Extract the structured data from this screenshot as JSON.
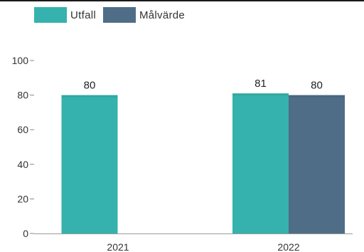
{
  "chart_data": {
    "type": "bar",
    "categories": [
      "2021",
      "2022"
    ],
    "series": [
      {
        "name": "Utfall",
        "values": [
          80,
          81
        ],
        "color": "#35b2ad"
      },
      {
        "name": "Målvärde",
        "values": [
          null,
          80
        ],
        "color": "#4f6d87"
      }
    ],
    "ylim": [
      0,
      100
    ],
    "yticks": [
      0,
      20,
      40,
      60,
      80,
      100
    ],
    "xlabel": "",
    "ylabel": "",
    "grid": false,
    "legend_position": "top-left",
    "data_labels": true
  }
}
